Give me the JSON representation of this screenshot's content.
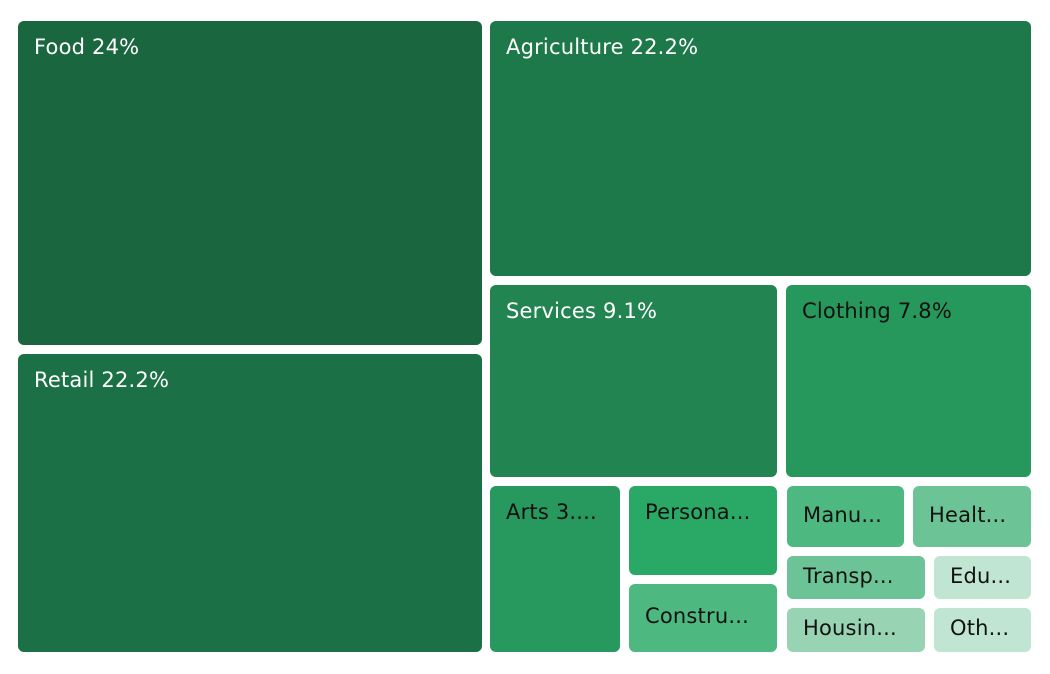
{
  "chart_data": {
    "type": "treemap",
    "title": "",
    "unit": "%",
    "items": [
      {
        "name": "Food",
        "value": 24,
        "label": "Food 24%",
        "color": "#1a663f",
        "text_color": "#ffffff"
      },
      {
        "name": "Retail",
        "value": 22.2,
        "label": "Retail 22.2%",
        "color": "#1b7045",
        "text_color": "#ffffff"
      },
      {
        "name": "Agriculture",
        "value": 22.2,
        "label": "Agriculture 22.2%",
        "color": "#1d784a",
        "text_color": "#ffffff"
      },
      {
        "name": "Services",
        "value": 9.1,
        "label": "Services 9.1%",
        "color": "#228451",
        "text_color": "#ffffff"
      },
      {
        "name": "Clothing",
        "value": 7.8,
        "label": "Clothing 7.8%",
        "color": "#26985c",
        "text_color": "#111111"
      },
      {
        "name": "Arts",
        "value": 3.4,
        "label": "Arts 3....",
        "color": "#27985e",
        "text_color": "#111111"
      },
      {
        "name": "Personal",
        "value": 2.1,
        "label": "Persona...",
        "color": "#2aa866",
        "text_color": "#111111"
      },
      {
        "name": "Construction",
        "value": 1.6,
        "label": "Constru...",
        "color": "#4db880",
        "text_color": "#111111"
      },
      {
        "name": "Manufacturing",
        "value": 1.1,
        "label": "Manu...",
        "color": "#4db880",
        "text_color": "#111111"
      },
      {
        "name": "Health",
        "value": 1.1,
        "label": "Healt...",
        "color": "#6cc496",
        "text_color": "#111111"
      },
      {
        "name": "Transportation",
        "value": 1.0,
        "label": "Transp...",
        "color": "#6cc496",
        "text_color": "#111111"
      },
      {
        "name": "Housing",
        "value": 1.0,
        "label": "Housin...",
        "color": "#98d4b3",
        "text_color": "#111111"
      },
      {
        "name": "Education",
        "value": 0.7,
        "label": "Edu...",
        "color": "#c0e5d2",
        "text_color": "#111111"
      },
      {
        "name": "Others",
        "value": 0.7,
        "label": "Oth...",
        "color": "#c0e5d2",
        "text_color": "#111111"
      }
    ]
  }
}
